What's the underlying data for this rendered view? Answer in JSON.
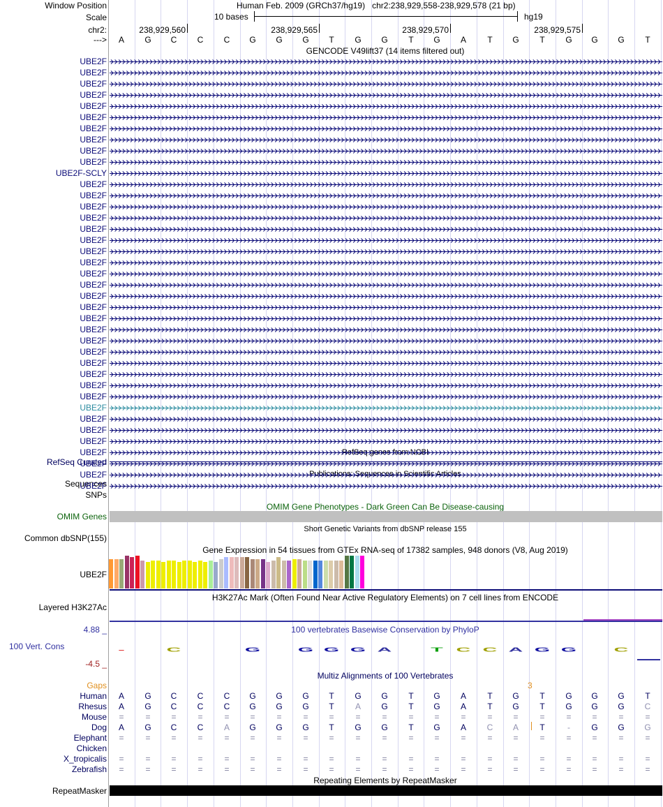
{
  "header": {
    "window_position_label": "Window Position",
    "assembly": "Human Feb. 2009 (GRCh37/hg19)",
    "position": "chr2:238,929,558-238,929,578 (21 bp)",
    "scale_label": "Scale",
    "scale_text": "10 bases",
    "db": "hg19",
    "chrom_label": "chr2:",
    "ticks": [
      "238,929,560",
      "238,929,565",
      "238,929,570",
      "238,929,575"
    ],
    "strand_label": "--->",
    "bases": [
      "A",
      "G",
      "C",
      "C",
      "C",
      "G",
      "G",
      "G",
      "T",
      "G",
      "G",
      "T",
      "G",
      "A",
      "T",
      "G",
      "T",
      "G",
      "G",
      "G",
      "T"
    ]
  },
  "gencode": {
    "title": "GENCODE V49lift37 (14 items filtered out)",
    "genes": [
      "UBE2F",
      "UBE2F",
      "UBE2F",
      "UBE2F",
      "UBE2F",
      "UBE2F",
      "UBE2F",
      "UBE2F",
      "UBE2F",
      "UBE2F",
      "UBE2F-SCLY",
      "UBE2F",
      "UBE2F",
      "UBE2F",
      "UBE2F",
      "UBE2F",
      "UBE2F",
      "UBE2F",
      "UBE2F",
      "UBE2F",
      "UBE2F",
      "UBE2F",
      "UBE2F",
      "UBE2F",
      "UBE2F",
      "UBE2F",
      "UBE2F",
      "UBE2F",
      "UBE2F",
      "UBE2F",
      "UBE2F",
      "UBE2F",
      "UBE2F",
      "UBE2F",
      "UBE2F",
      "UBE2F",
      "UBE2F",
      "UBE2F",
      "UBE2F"
    ],
    "highlight_index": 31,
    "colors": {
      "navy": "#0c0c78",
      "teal": "#2d8ca0"
    }
  },
  "refseq": {
    "title": "RefSeq genes from NCBI",
    "label": "RefSeq Curated"
  },
  "publications": {
    "title": "Publications: Sequences in Scientific Articles",
    "label1": "Sequences",
    "label2": "SNPs"
  },
  "omim": {
    "title": "OMIM Gene Phenotypes - Dark Green Can Be Disease-causing",
    "label": "OMIM Genes",
    "color": "#0c630c"
  },
  "dbsnp": {
    "title": "Short Genetic Variants from dbSNP release 155",
    "label": "Common dbSNP(155)"
  },
  "gtex": {
    "title": "Gene Expression in 54 tissues from GTEx RNA-seq of 17382 samples, 948 donors (V8, Aug 2019)",
    "label": "UBE2F",
    "bars": [
      {
        "c": "#ff9933",
        "h": 0.9
      },
      {
        "c": "#ffaa66",
        "h": 0.9
      },
      {
        "c": "#99aa77",
        "h": 0.9
      },
      {
        "c": "#993366",
        "h": 1.0
      },
      {
        "c": "#cc2255",
        "h": 0.95
      },
      {
        "c": "#ee1122",
        "h": 1.0
      },
      {
        "c": "#cc99aa",
        "h": 0.85
      },
      {
        "c": "#eeee00",
        "h": 0.8
      },
      {
        "c": "#eeee00",
        "h": 0.85
      },
      {
        "c": "#eeee00",
        "h": 0.85
      },
      {
        "c": "#eeee00",
        "h": 0.8
      },
      {
        "c": "#eeee00",
        "h": 0.85
      },
      {
        "c": "#eeee00",
        "h": 0.85
      },
      {
        "c": "#eeee00",
        "h": 0.8
      },
      {
        "c": "#eeee00",
        "h": 0.85
      },
      {
        "c": "#eeee00",
        "h": 0.85
      },
      {
        "c": "#eeee00",
        "h": 0.8
      },
      {
        "c": "#eeee00",
        "h": 0.85
      },
      {
        "c": "#eeee00",
        "h": 0.8
      },
      {
        "c": "#aaee99",
        "h": 0.85
      },
      {
        "c": "#99aacc",
        "h": 0.8
      },
      {
        "c": "#cccccc",
        "h": 0.9
      },
      {
        "c": "#aabbff",
        "h": 0.95
      },
      {
        "c": "#eebbbb",
        "h": 0.95
      },
      {
        "c": "#ddbbbb",
        "h": 0.95
      },
      {
        "c": "#ccaa99",
        "h": 0.95
      },
      {
        "c": "#886644",
        "h": 0.95
      },
      {
        "c": "#aa8877",
        "h": 0.9
      },
      {
        "c": "#ccaa88",
        "h": 0.9
      },
      {
        "c": "#773388",
        "h": 0.9
      },
      {
        "c": "#ddaacc",
        "h": 0.8
      },
      {
        "c": "#ccbbaa",
        "h": 0.85
      },
      {
        "c": "#ccbb88",
        "h": 0.95
      },
      {
        "c": "#ccbbaa",
        "h": 0.85
      },
      {
        "c": "#aa66cc",
        "h": 0.85
      },
      {
        "c": "#eeee00",
        "h": 0.9
      },
      {
        "c": "#ccaa99",
        "h": 0.9
      },
      {
        "c": "#bbdd88",
        "h": 0.85
      },
      {
        "c": "#dddddd",
        "h": 0.85
      },
      {
        "c": "#0066cc",
        "h": 0.85
      },
      {
        "c": "#5588dd",
        "h": 0.85
      },
      {
        "c": "#ccddaa",
        "h": 0.85
      },
      {
        "c": "#ddccaa",
        "h": 0.85
      },
      {
        "c": "#ccbbaa",
        "h": 0.85
      },
      {
        "c": "#ddbb99",
        "h": 0.85
      },
      {
        "c": "#557744",
        "h": 1.0
      },
      {
        "c": "#007744",
        "h": 1.0
      },
      {
        "c": "#aaddee",
        "h": 1.0
      },
      {
        "c": "#ff00dd",
        "h": 1.0
      }
    ]
  },
  "h3k27ac": {
    "title": "H3K27Ac Mark (Often Found Near Active Regulatory Elements) on 7 cell lines from ENCODE",
    "label": "Layered H3K27Ac"
  },
  "phylop": {
    "title": "100 vertebrates Basewise Conservation by PhyloP",
    "label": "100 Vert. Cons",
    "max": "4.88 _",
    "min": "-4.5 _",
    "glyphs": [
      "-",
      "",
      "C",
      "",
      "",
      "G",
      "",
      "G",
      "G",
      "G",
      "A",
      "",
      "T",
      "C",
      "C",
      "A",
      "G",
      "G",
      "",
      "C",
      ""
    ]
  },
  "multiz": {
    "title": "Multiz Alignments of 100 Vertebrates",
    "gaps_label": "Gaps",
    "gaps_value": "3",
    "species": [
      {
        "name": "Human",
        "seq": [
          "A",
          "G",
          "C",
          "C",
          "C",
          "G",
          "G",
          "G",
          "T",
          "G",
          "G",
          "T",
          "G",
          "A",
          "T",
          "G",
          "T",
          "G",
          "G",
          "G",
          "T"
        ]
      },
      {
        "name": "Rhesus",
        "seq": [
          "A",
          "G",
          "C",
          "C",
          "C",
          "G",
          "G",
          "G",
          "T",
          "A",
          "G",
          "T",
          "G",
          "A",
          "T",
          "G",
          "T",
          "G",
          "G",
          "G",
          "C"
        ]
      },
      {
        "name": "Mouse",
        "seq": [
          "=",
          "=",
          "=",
          "=",
          "=",
          "=",
          "=",
          "=",
          "=",
          "=",
          "=",
          "=",
          "=",
          "=",
          "=",
          "=",
          "=",
          "=",
          "=",
          "=",
          "="
        ]
      },
      {
        "name": "Dog",
        "seq": [
          "A",
          "G",
          "C",
          "C",
          "A",
          "G",
          "G",
          "G",
          "T",
          "G",
          "G",
          "T",
          "G",
          "A",
          "C",
          "A",
          "T",
          "-",
          "G",
          "G",
          "G"
        ]
      },
      {
        "name": "Elephant",
        "seq": [
          "=",
          "=",
          "=",
          "=",
          "=",
          "=",
          "=",
          "=",
          "=",
          "=",
          "=",
          "=",
          "=",
          "=",
          "=",
          "=",
          "=",
          "=",
          "=",
          "=",
          "="
        ]
      },
      {
        "name": "Chicken",
        "seq": [
          "",
          "",
          "",
          "",
          "",
          "",
          "",
          "",
          "",
          "",
          "",
          "",
          "",
          "",
          "",
          "",
          "",
          "",
          "",
          "",
          ""
        ]
      },
      {
        "name": "X_tropicalis",
        "seq": [
          "=",
          "=",
          "=",
          "=",
          "=",
          "=",
          "=",
          "=",
          "=",
          "=",
          "=",
          "=",
          "=",
          "=",
          "=",
          "=",
          "=",
          "=",
          "=",
          "=",
          "="
        ]
      },
      {
        "name": "Zebrafish",
        "seq": [
          "=",
          "=",
          "=",
          "=",
          "=",
          "=",
          "=",
          "=",
          "=",
          "=",
          "=",
          "=",
          "=",
          "=",
          "=",
          "=",
          "=",
          "=",
          "=",
          "=",
          "="
        ]
      }
    ]
  },
  "repeatmasker": {
    "title": "Repeating Elements by RepeatMasker",
    "label": "RepeatMasker"
  }
}
